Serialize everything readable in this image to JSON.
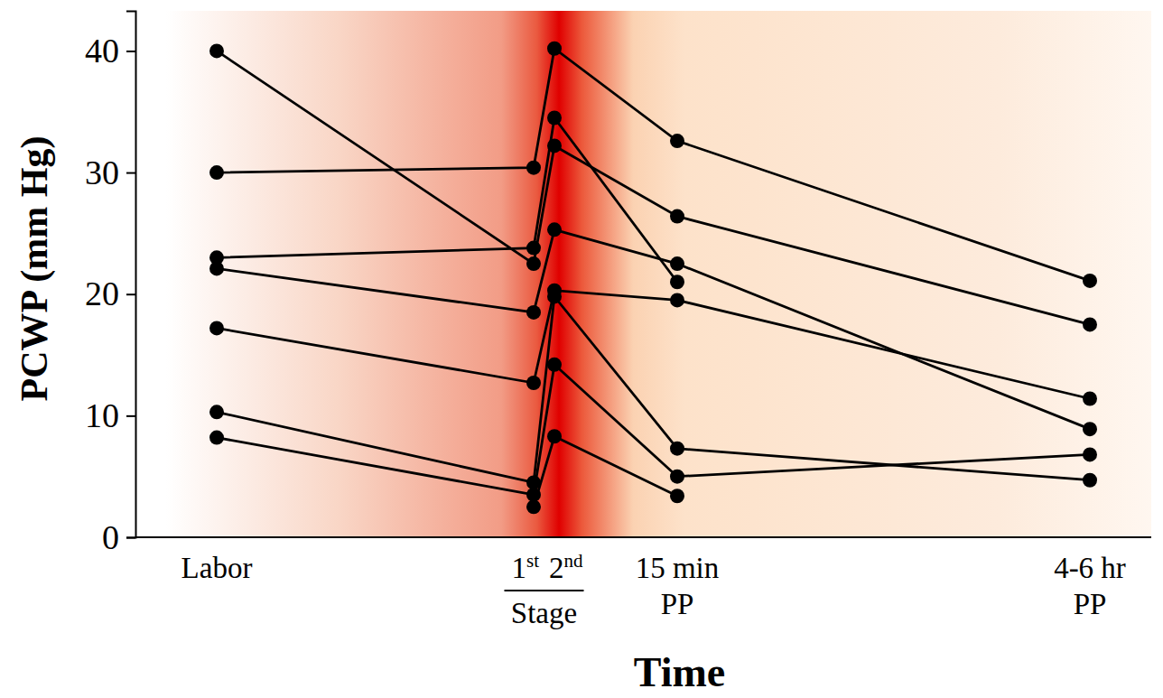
{
  "chart_data": {
    "type": "line",
    "x_label": "Time",
    "y_label": "PCWP (mm Hg)",
    "categories": [
      "Labor",
      "1st",
      "2nd",
      "15 min PP",
      "4-6 hr PP"
    ],
    "annotations": [
      "Stage"
    ],
    "series": [
      {
        "color": "#000000",
        "marker": "circle",
        "values": [
          40,
          22.5,
          32.2,
          26.4,
          17.5
        ]
      },
      {
        "color": "#000000",
        "marker": "circle",
        "values": [
          30,
          30.4,
          40.2,
          32.6,
          21.1
        ]
      },
      {
        "color": "#000000",
        "marker": "circle",
        "values": [
          23,
          23.8,
          34.5,
          21,
          null
        ]
      },
      {
        "color": "#000000",
        "marker": "circle",
        "values": [
          22.1,
          18.5,
          25.3,
          22.5,
          8.9
        ]
      },
      {
        "color": "#000000",
        "marker": "circle",
        "values": [
          17.2,
          12.7,
          20.3,
          19.5,
          11.4
        ]
      },
      {
        "color": "#000000",
        "marker": "circle",
        "values": [
          10.3,
          4.5,
          19.8,
          7.3,
          4.7
        ]
      },
      {
        "color": "#000000",
        "marker": "circle",
        "values": [
          8.2,
          3.5,
          14.2,
          5,
          6.8
        ]
      },
      {
        "color": "#000000",
        "marker": "circle",
        "values": [
          null,
          2.5,
          8.3,
          3.4,
          null
        ]
      }
    ],
    "ylim": [
      0,
      43.3
    ],
    "yticks": [
      0,
      10,
      20,
      30,
      40
    ],
    "grid": false
  }
}
